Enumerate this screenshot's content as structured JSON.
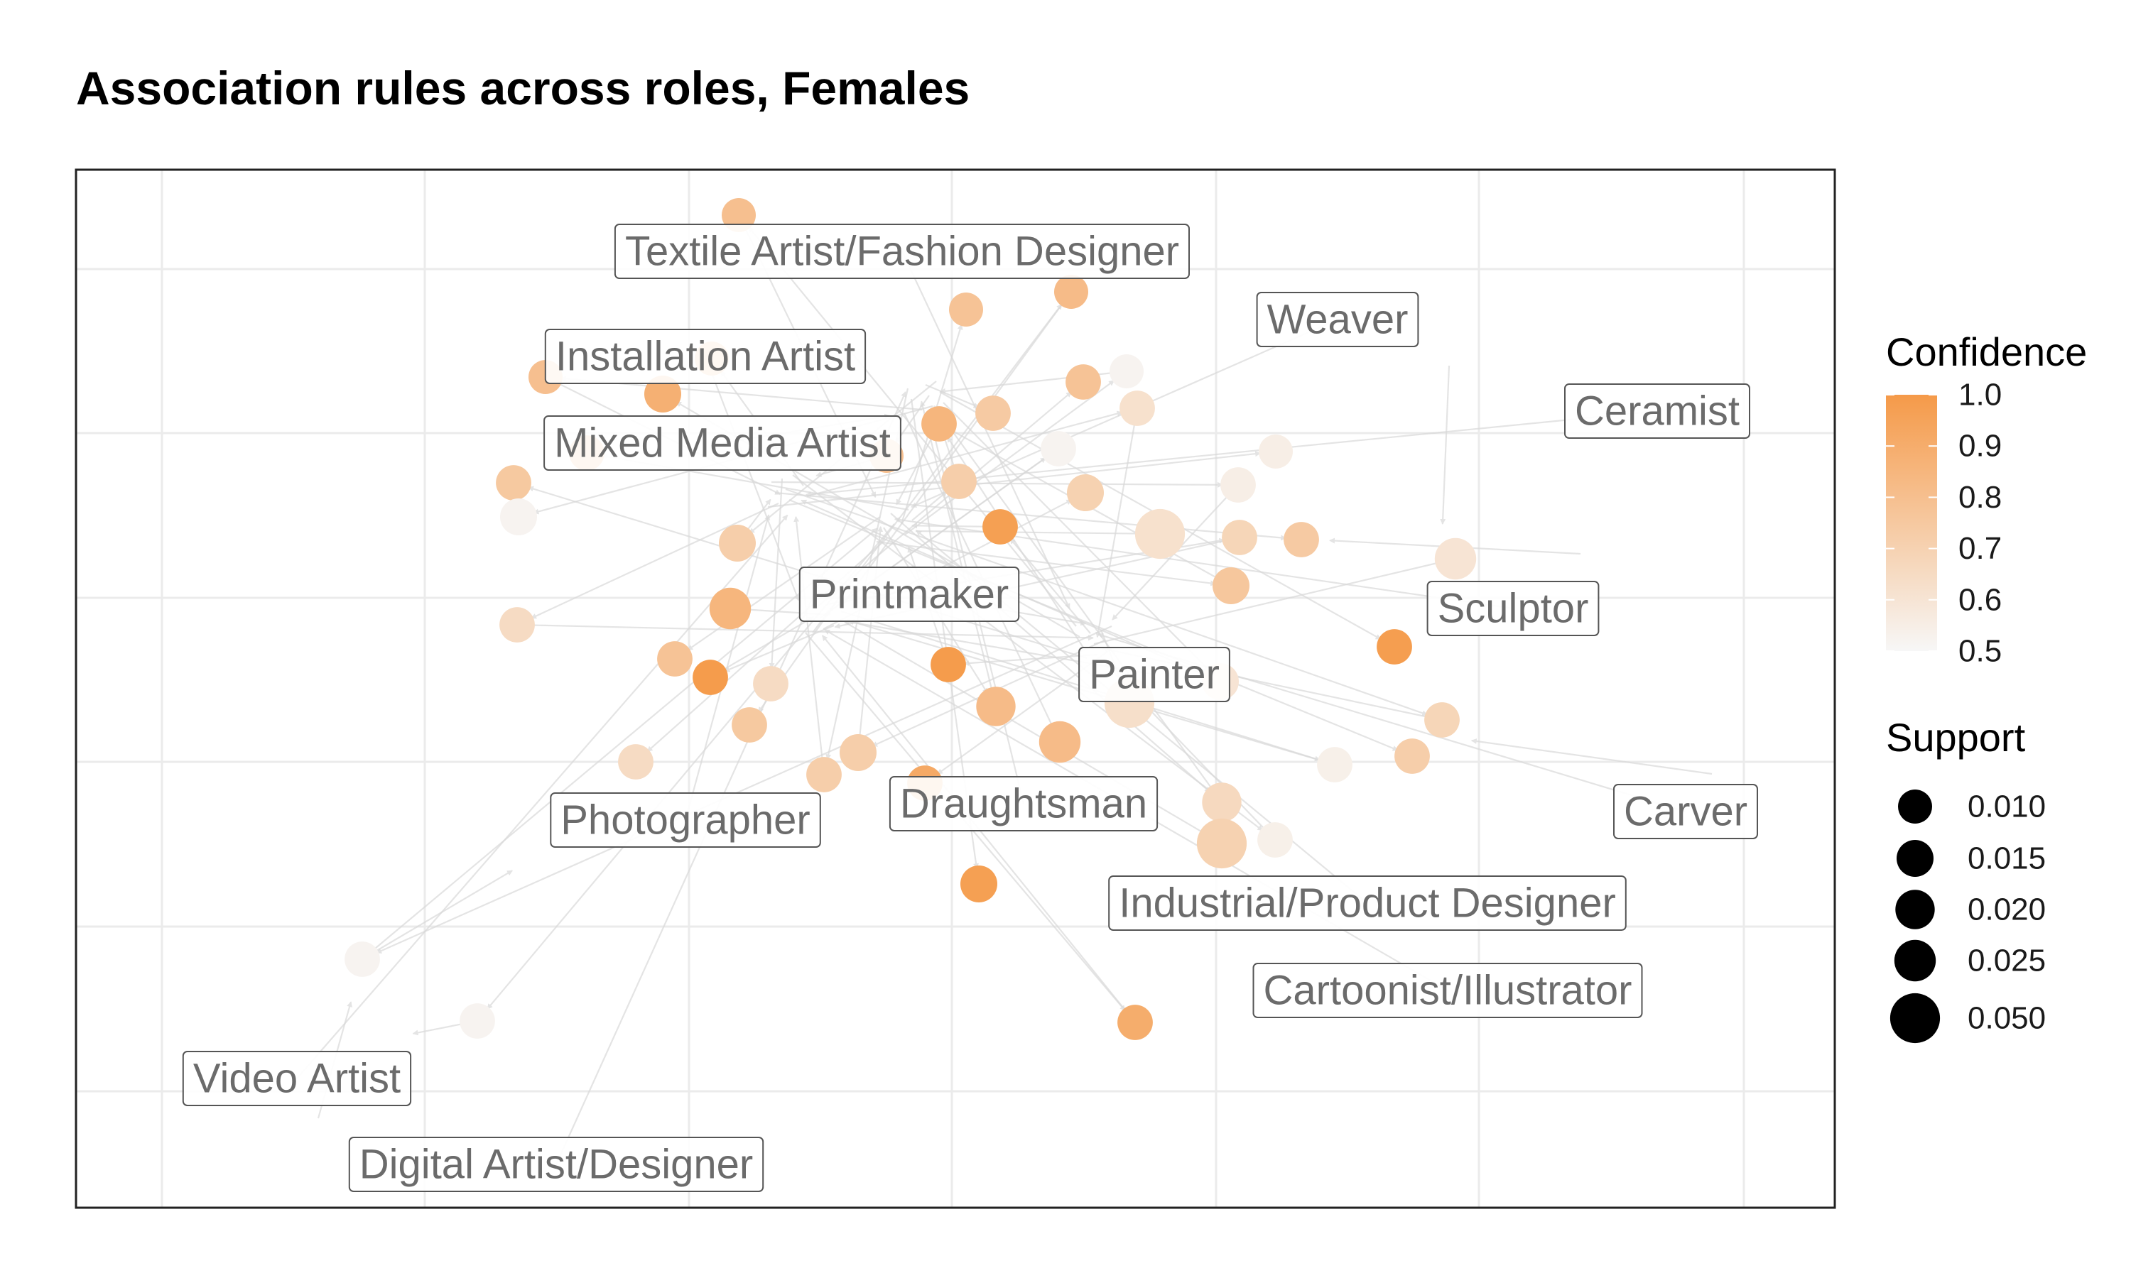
{
  "chart_data": {
    "type": "network",
    "title": "Association rules across roles, Females",
    "xlabel": "",
    "ylabel": "",
    "grid": true,
    "legend_position": "right",
    "role_labels": [
      "Textile Artist/Fashion Designer",
      "Weaver",
      "Installation Artist",
      "Ceramist",
      "Mixed Media Artist",
      "Printmaker",
      "Sculptor",
      "Painter",
      "Photographer",
      "Draughtsman",
      "Carver",
      "Industrial/Product Designer",
      "Cartoonist/Illustrator",
      "Video Artist",
      "Digital Artist/Designer"
    ],
    "confidence_legend": {
      "title": "Confidence",
      "min": 0.5,
      "max": 1.0,
      "ticks": [
        "1.0",
        "0.9",
        "0.8",
        "0.7",
        "0.6",
        "0.5"
      ],
      "low_color": "#f7f7f7",
      "high_color": "#f59a49"
    },
    "support_legend": {
      "title": "Support",
      "values": [
        0.01,
        0.015,
        0.02,
        0.025,
        0.05
      ],
      "labels": [
        "0.010",
        "0.015",
        "0.020",
        "0.025",
        "0.050"
      ],
      "color": "#000000"
    },
    "edge_color": "#d9d9d9"
  }
}
